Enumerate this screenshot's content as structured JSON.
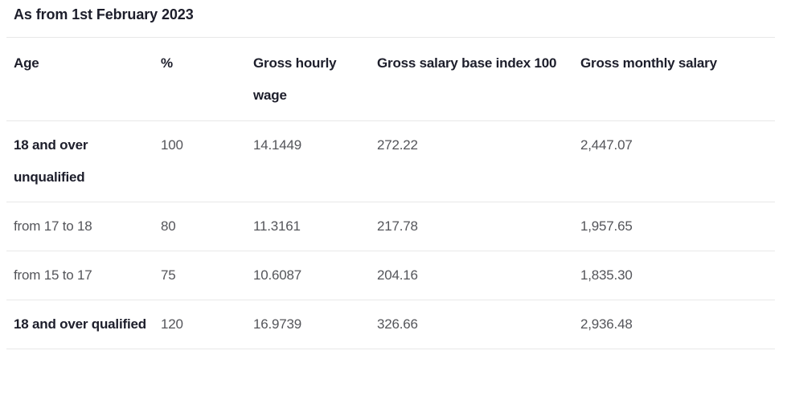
{
  "page": {
    "title": "As from 1st February 2023"
  },
  "colors": {
    "heading_text": "#1d1e2b",
    "body_text": "#54555a",
    "row_border": "#e8e8e8",
    "background": "#ffffff"
  },
  "table": {
    "columns": [
      "Age",
      "%",
      "Gross hourly wage",
      "Gross salary base index 100",
      "Gross monthly salary"
    ],
    "rows": [
      {
        "age": "18 and over unqualified",
        "percent": "100",
        "gross_hourly_wage": "14.1449",
        "gross_salary_base_index_100": "272.22",
        "gross_monthly_salary": "2,447.07"
      },
      {
        "age": "from 17 to 18",
        "percent": "80",
        "gross_hourly_wage": "11.3161",
        "gross_salary_base_index_100": "217.78",
        "gross_monthly_salary": "1,957.65"
      },
      {
        "age": "from 15 to 17",
        "percent": "75",
        "gross_hourly_wage": "10.6087",
        "gross_salary_base_index_100": "204.16",
        "gross_monthly_salary": "1,835.30"
      },
      {
        "age": "18 and over qualified",
        "percent": "120",
        "gross_hourly_wage": "16.9739",
        "gross_salary_base_index_100": "326.66",
        "gross_monthly_salary": "2,936.48"
      }
    ]
  }
}
